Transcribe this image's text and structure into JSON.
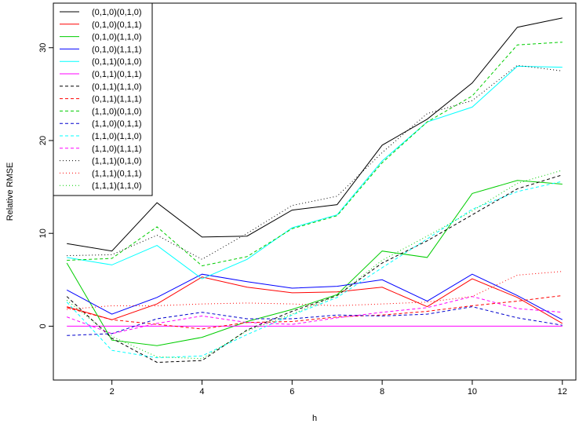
{
  "chart_data": {
    "type": "line",
    "title": "",
    "xlabel": "h",
    "ylabel": "Relative RMSE",
    "x": [
      1,
      2,
      3,
      4,
      5,
      6,
      7,
      8,
      9,
      10,
      11,
      12
    ],
    "xlim": [
      0.7,
      12.3
    ],
    "ylim": [
      -5.8,
      34.8
    ],
    "x_ticks": [
      2,
      4,
      6,
      8,
      10,
      12
    ],
    "y_ticks": [
      0,
      10,
      20,
      30
    ],
    "grid": false,
    "legend_position": "top-left",
    "series": [
      {
        "name": "(0,1,0)(0,1,0)",
        "color": "#000000",
        "dash": "solid",
        "values": [
          8.9,
          8.1,
          13.3,
          9.6,
          9.7,
          12.5,
          13.1,
          19.5,
          22.3,
          26.2,
          32.2,
          33.2
        ]
      },
      {
        "name": "(0,1,0)(0,1,1)",
        "color": "#ff0000",
        "dash": "solid",
        "values": [
          2.1,
          0.7,
          2.4,
          5.3,
          4.2,
          3.6,
          3.7,
          4.2,
          2.1,
          5.1,
          3.1,
          0.3
        ]
      },
      {
        "name": "(0,1,0)(1,1,0)",
        "color": "#00cd00",
        "dash": "solid",
        "values": [
          6.8,
          -1.5,
          -2.1,
          -1.2,
          0.5,
          1.8,
          3.4,
          8.1,
          7.4,
          14.3,
          15.7,
          15.3
        ]
      },
      {
        "name": "(0,1,0)(1,1,1)",
        "color": "#0000ff",
        "dash": "solid",
        "values": [
          3.9,
          1.3,
          3.1,
          5.6,
          4.8,
          4.1,
          4.3,
          5.0,
          2.7,
          5.6,
          3.3,
          0.7
        ]
      },
      {
        "name": "(0,1,1)(0,1,0)",
        "color": "#00ffff",
        "dash": "solid",
        "values": [
          7.4,
          6.6,
          8.7,
          5.1,
          7.2,
          10.6,
          12.0,
          17.8,
          22.0,
          23.6,
          28.0,
          27.9
        ]
      },
      {
        "name": "(0,1,1)(0,1,1)",
        "color": "#ff00ff",
        "dash": "solid",
        "values": [
          0,
          0,
          0,
          0,
          0,
          0,
          0,
          0,
          0,
          0,
          0,
          0
        ]
      },
      {
        "name": "(0,1,1)(1,1,0)",
        "color": "#000000",
        "dash": "dashed",
        "values": [
          3.2,
          -1.3,
          -3.9,
          -3.7,
          -0.4,
          1.6,
          3.3,
          6.8,
          9.2,
          12.0,
          14.8,
          16.3
        ]
      },
      {
        "name": "(0,1,1)(1,1,1)",
        "color": "#ff0000",
        "dash": "dashed",
        "values": [
          2.0,
          0.7,
          0.2,
          -0.3,
          0.4,
          0.5,
          1.0,
          1.2,
          1.6,
          2.2,
          2.7,
          3.3
        ]
      },
      {
        "name": "(1,1,0)(0,1,0)",
        "color": "#00cd00",
        "dash": "dashed",
        "values": [
          7.1,
          7.3,
          10.7,
          6.5,
          7.5,
          10.5,
          11.9,
          17.6,
          22.0,
          24.8,
          30.3,
          30.6
        ]
      },
      {
        "name": "(1,1,0)(0,1,1)",
        "color": "#0000cd",
        "dash": "dashed",
        "values": [
          -1.0,
          -0.8,
          0.8,
          1.5,
          0.8,
          0.8,
          1.2,
          1.1,
          1.3,
          2.1,
          0.9,
          0.1
        ]
      },
      {
        "name": "(1,1,0)(1,1,0)",
        "color": "#00ffff",
        "dash": "dashed",
        "values": [
          2.6,
          -2.6,
          -3.4,
          -3.2,
          -0.9,
          1.2,
          3.1,
          6.3,
          9.4,
          12.6,
          14.5,
          15.6
        ]
      },
      {
        "name": "(1,1,0)(1,1,1)",
        "color": "#ff00ff",
        "dash": "dashed",
        "values": [
          1.0,
          -0.8,
          0.3,
          1.1,
          0.4,
          0.2,
          0.9,
          1.5,
          2.0,
          3.2,
          1.9,
          1.5
        ]
      },
      {
        "name": "(1,1,1)(0,1,0)",
        "color": "#000000",
        "dash": "dotted",
        "values": [
          7.6,
          7.7,
          9.8,
          7.2,
          10.0,
          13.0,
          14.0,
          18.7,
          22.9,
          24.3,
          28.1,
          27.5
        ]
      },
      {
        "name": "(1,1,1)(0,1,1)",
        "color": "#ff0000",
        "dash": "dotted",
        "values": [
          1.8,
          2.2,
          2.2,
          2.4,
          2.5,
          2.4,
          2.2,
          2.4,
          2.6,
          3.2,
          5.5,
          5.9
        ]
      },
      {
        "name": "(1,1,1)(1,1,0)",
        "color": "#00cd00",
        "dash": "dotted",
        "values": [
          2.8,
          -1.1,
          -3.3,
          -3.5,
          -0.5,
          1.3,
          3.3,
          7.1,
          9.7,
          12.4,
          15.4,
          16.8
        ]
      }
    ]
  }
}
